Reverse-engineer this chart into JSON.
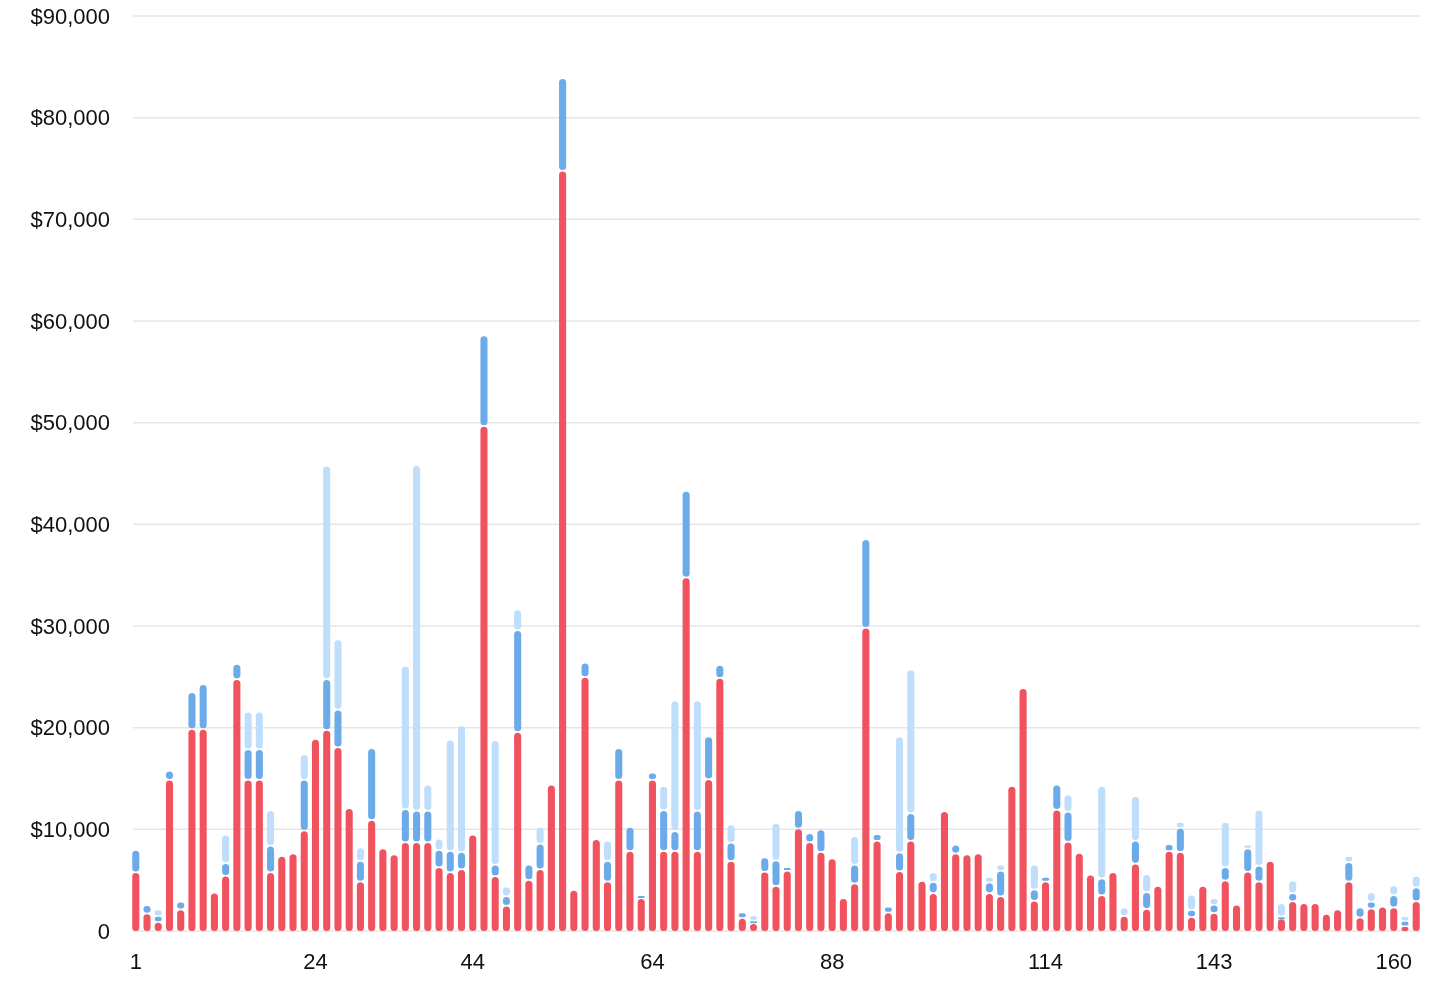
{
  "chart_data": {
    "type": "bar",
    "stacked": true,
    "grid": "y",
    "categories": [
      "1",
      null,
      null,
      null,
      null,
      null,
      null,
      null,
      null,
      null,
      null,
      null,
      null,
      null,
      null,
      null,
      "24",
      null,
      null,
      null,
      null,
      null,
      null,
      null,
      null,
      null,
      null,
      null,
      null,
      null,
      "44",
      null,
      null,
      null,
      null,
      null,
      null,
      null,
      null,
      null,
      null,
      null,
      null,
      null,
      null,
      null,
      "64",
      null,
      null,
      null,
      null,
      null,
      null,
      null,
      null,
      null,
      null,
      null,
      null,
      null,
      null,
      null,
      "88",
      null,
      null,
      null,
      null,
      null,
      null,
      null,
      null,
      null,
      null,
      null,
      null,
      null,
      null,
      null,
      null,
      null,
      null,
      "114",
      null,
      null,
      null,
      null,
      null,
      null,
      null,
      null,
      null,
      null,
      null,
      null,
      null,
      null,
      "143",
      null,
      null,
      null,
      null,
      null,
      null,
      null,
      null,
      null,
      null,
      null,
      null,
      null,
      null,
      null,
      "160",
      null,
      null
    ],
    "ylim": [
      0,
      90000
    ],
    "yticks": [
      {
        "value": 0,
        "label": "0"
      },
      {
        "value": 10000,
        "label": "$10,000"
      },
      {
        "value": 20000,
        "label": "$20,000"
      },
      {
        "value": 30000,
        "label": "$30,000"
      },
      {
        "value": 40000,
        "label": "$40,000"
      },
      {
        "value": 50000,
        "label": "$50,000"
      },
      {
        "value": 60000,
        "label": "$60,000"
      },
      {
        "value": 70000,
        "label": "$70,000"
      },
      {
        "value": 80000,
        "label": "$80,000"
      },
      {
        "value": 90000,
        "label": "$90,000"
      }
    ],
    "series": [
      {
        "color": "#f0525e",
        "values": [
          5700,
          1650,
          800,
          14800,
          2050,
          19800,
          19800,
          3700,
          5350,
          24700,
          14800,
          14800,
          5700,
          7300,
          7550,
          9800,
          18800,
          19700,
          18000,
          12000,
          4800,
          10850,
          8050,
          7450,
          8650,
          8650,
          8650,
          6200,
          5700,
          6000,
          9400,
          49600,
          5300,
          2400,
          19500,
          4950,
          6000,
          14300,
          74700,
          3950,
          24900,
          8950,
          4800,
          14800,
          7800,
          3150,
          14800,
          7800,
          7800,
          34700,
          7800,
          14850,
          24800,
          6800,
          1200,
          700,
          5750,
          4350,
          5850,
          10000,
          8650,
          7700,
          7050,
          3150,
          4600,
          29750,
          8800,
          1750,
          5800,
          8800,
          4850,
          3650,
          11700,
          7550,
          7450,
          7550,
          3650,
          3350,
          14200,
          23800,
          2900,
          4800,
          11850,
          8700,
          7600,
          5450,
          3450,
          5700,
          1400,
          6550,
          2100,
          4350,
          7800,
          7700,
          1300,
          4350,
          1700,
          4900,
          2500,
          5750,
          4800,
          6800,
          1150,
          2850,
          2650,
          2650,
          1600,
          2050,
          4800,
          1250,
          2150,
          2300,
          2250,
          400,
          2850
        ]
      },
      {
        "color": "#6cabe9",
        "values": [
          2200,
          800,
          600,
          900,
          750,
          3600,
          4400,
          0,
          1250,
          1500,
          3000,
          3000,
          2600,
          0,
          0,
          5000,
          0,
          5000,
          3700,
          0,
          2000,
          7050,
          0,
          0,
          3250,
          3100,
          3100,
          1700,
          2100,
          1700,
          0,
          8900,
          1150,
          950,
          10000,
          1500,
          2500,
          0,
          9100,
          0,
          1400,
          0,
          2000,
          3100,
          2350,
          300,
          700,
          4000,
          1950,
          8500,
          3950,
          4200,
          1300,
          1800,
          550,
          250,
          1400,
          2500,
          350,
          1800,
          900,
          2200,
          0,
          0,
          1850,
          8700,
          650,
          550,
          1850,
          2700,
          0,
          1100,
          0,
          850,
          0,
          0,
          1050,
          2500,
          0,
          0,
          1100,
          450,
          2450,
          2950,
          0,
          0,
          1650,
          0,
          0,
          2250,
          1650,
          0,
          650,
          2350,
          700,
          0,
          800,
          1300,
          0,
          2300,
          1550,
          0,
          200,
          800,
          0,
          0,
          0,
          0,
          1900,
          1000,
          650,
          0,
          1200,
          500,
          1350
        ]
      },
      {
        "color": "#bfdefc",
        "values": [
          0,
          0,
          650,
          0,
          0,
          0,
          0,
          0,
          2800,
          0,
          3700,
          3700,
          3500,
          0,
          0,
          2500,
          0,
          21000,
          6900,
          0,
          1350,
          0,
          0,
          0,
          14100,
          34000,
          2550,
          1100,
          10950,
          12450,
          0,
          0,
          12250,
          950,
          2050,
          0,
          1650,
          0,
          0,
          0,
          0,
          0,
          2000,
          0,
          0,
          0,
          0,
          2400,
          12850,
          0,
          10850,
          0,
          0,
          1800,
          0,
          500,
          0,
          3700,
          0,
          0,
          0,
          0,
          0,
          0,
          2800,
          0,
          0,
          0,
          11400,
          14150,
          0,
          950,
          0,
          0,
          0,
          0,
          550,
          600,
          0,
          0,
          2450,
          0,
          0,
          1700,
          0,
          0,
          9100,
          0,
          850,
          4400,
          1750,
          0,
          0,
          600,
          1500,
          0,
          650,
          4450,
          0,
          350,
          5500,
          0,
          1300,
          1250,
          0,
          0,
          0,
          0,
          600,
          0,
          950,
          0,
          950,
          500,
          1150
        ]
      }
    ]
  }
}
